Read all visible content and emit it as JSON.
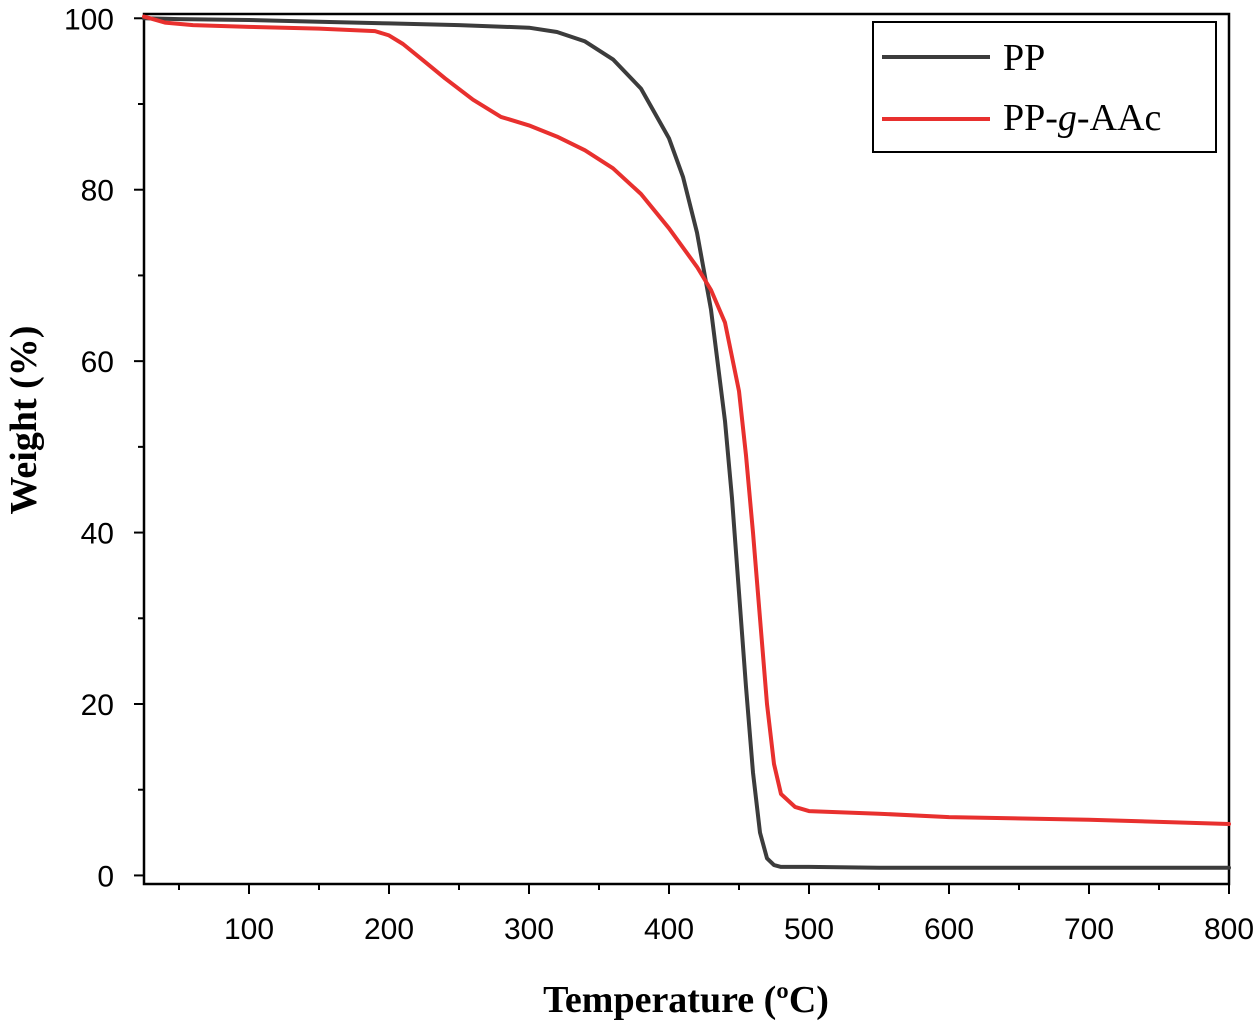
{
  "chart_data": {
    "type": "line",
    "title": "",
    "xlabel": "Temperature (ºC)",
    "ylabel": "Weight (%)",
    "xlim": [
      25,
      800
    ],
    "ylim": [
      -1,
      100.5
    ],
    "xticks": [
      100,
      200,
      300,
      400,
      500,
      600,
      700,
      800
    ],
    "yticks": [
      0,
      20,
      40,
      60,
      80,
      100
    ],
    "legend_position": "top-right",
    "grid": false,
    "series": [
      {
        "name": "PP",
        "label_prefix": "PP",
        "label_italic": "",
        "label_suffix": "",
        "color": "#3c3c3c",
        "x": [
          25,
          50,
          100,
          150,
          200,
          250,
          300,
          320,
          340,
          360,
          380,
          400,
          410,
          420,
          430,
          440,
          445,
          450,
          455,
          460,
          465,
          470,
          475,
          480,
          500,
          550,
          600,
          700,
          800
        ],
        "y": [
          100,
          99.9,
          99.8,
          99.6,
          99.4,
          99.2,
          98.9,
          98.4,
          97.3,
          95.2,
          91.8,
          86,
          81.5,
          75,
          66,
          53,
          44,
          33,
          22,
          12,
          5,
          2,
          1.2,
          1,
          1,
          0.9,
          0.9,
          0.9,
          0.9
        ]
      },
      {
        "name": "PP-g-AAc",
        "label_prefix": "PP-",
        "label_italic": "g",
        "label_suffix": "-AAc",
        "color": "#e8302e",
        "x": [
          25,
          40,
          60,
          100,
          150,
          190,
          200,
          210,
          225,
          240,
          260,
          280,
          300,
          320,
          340,
          360,
          380,
          400,
          420,
          430,
          440,
          450,
          455,
          460,
          465,
          470,
          475,
          480,
          490,
          500,
          550,
          600,
          700,
          800
        ],
        "y": [
          100.2,
          99.5,
          99.2,
          99,
          98.8,
          98.5,
          98,
          97,
          95,
          93,
          90.5,
          88.5,
          87.5,
          86.2,
          84.6,
          82.5,
          79.5,
          75.5,
          71,
          68.3,
          64.5,
          56.5,
          49,
          40,
          30,
          20,
          13,
          9.5,
          8,
          7.5,
          7.2,
          6.8,
          6.5,
          6
        ]
      }
    ]
  }
}
